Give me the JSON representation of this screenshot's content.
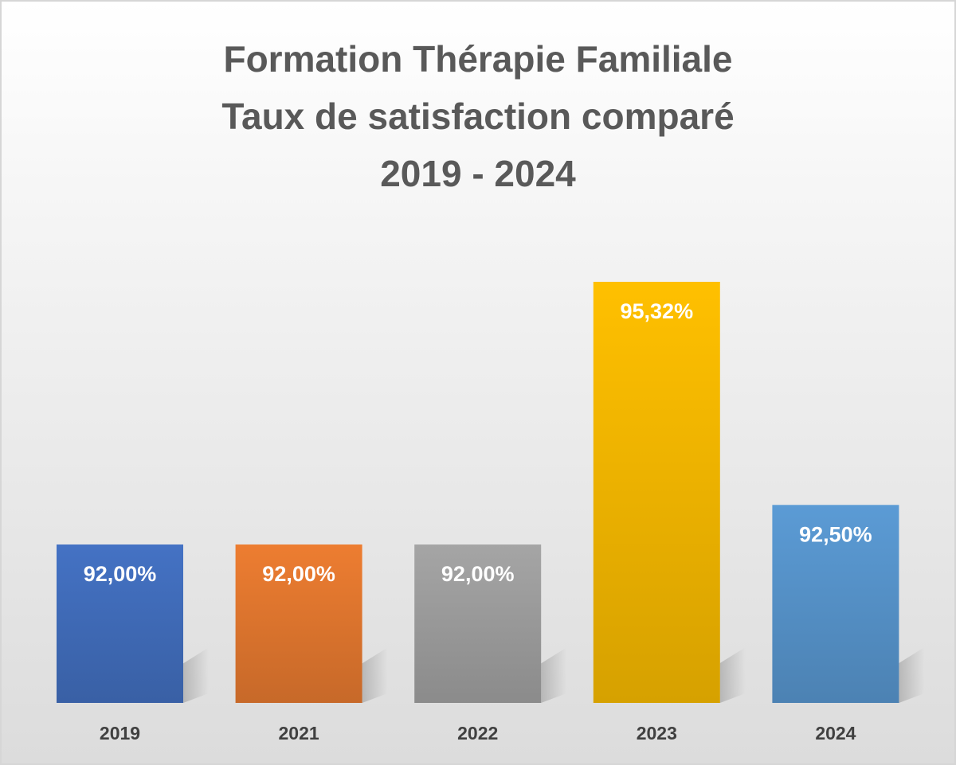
{
  "chart_data": {
    "type": "bar",
    "title": [
      "Formation Thérapie Familiale",
      "Taux de satisfaction comparé",
      "2019 - 2024"
    ],
    "categories": [
      "2019",
      "2021",
      "2022",
      "2023",
      "2024"
    ],
    "values": [
      92.0,
      92.0,
      92.0,
      95.32,
      92.5
    ],
    "data_labels": [
      "92,00%",
      "92,00%",
      "92,00%",
      "95,32%",
      "92,50%"
    ],
    "colors": [
      "#4472C4",
      "#ED7D31",
      "#A5A5A5",
      "#FFC000",
      "#5B9BD5"
    ],
    "grid": false,
    "legend": "none"
  }
}
